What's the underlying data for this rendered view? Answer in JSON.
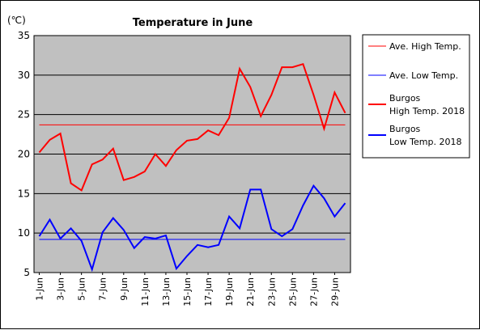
{
  "chart_data": {
    "type": "line",
    "title": "Temperature in June",
    "ylabel": "(℃)",
    "ylim": [
      5,
      35
    ],
    "yticks": [
      5,
      10,
      15,
      20,
      25,
      30,
      35
    ],
    "xticklabels": [
      "1-Jun",
      "3-Jun",
      "5-Jun",
      "7-Jun",
      "9-Jun",
      "11-Jun",
      "13-Jun",
      "15-Jun",
      "17-Jun",
      "19-Jun",
      "21-Jun",
      "23-Jun",
      "25-Jun",
      "27-Jun",
      "29-Jun"
    ],
    "days": [
      1,
      2,
      3,
      4,
      5,
      6,
      7,
      8,
      9,
      10,
      11,
      12,
      13,
      14,
      15,
      16,
      17,
      18,
      19,
      20,
      21,
      22,
      23,
      24,
      25,
      26,
      27,
      28,
      29,
      30
    ],
    "grid": true,
    "legend_position": "right",
    "series": [
      {
        "name": "Ave. High Temp.",
        "color": "#ff0000",
        "style": "thin",
        "constant": 23.7
      },
      {
        "name": "Ave. Low Temp.",
        "color": "#0000ff",
        "style": "thin",
        "constant": 9.2
      },
      {
        "name": "Burgos High Temp. 2018",
        "legend_lines": [
          "Burgos",
          "High Temp. 2018"
        ],
        "color": "#ff0000",
        "style": "thick",
        "values": [
          20.2,
          21.8,
          22.6,
          16.3,
          15.4,
          18.7,
          19.3,
          20.7,
          16.7,
          17.1,
          17.8,
          20.0,
          18.5,
          20.5,
          21.7,
          21.9,
          23.0,
          22.4,
          24.6,
          30.8,
          28.5,
          24.8,
          27.5,
          31.0,
          31.0,
          31.4,
          27.5,
          23.2,
          27.8,
          25.2
        ]
      },
      {
        "name": "Burgos Low Temp. 2018",
        "legend_lines": [
          "Burgos",
          "Low Temp. 2018"
        ],
        "color": "#0000ff",
        "style": "thick",
        "values": [
          9.6,
          11.7,
          9.3,
          10.6,
          9.0,
          5.4,
          10.1,
          11.9,
          10.4,
          8.1,
          9.5,
          9.3,
          9.7,
          5.5,
          7.1,
          8.5,
          8.2,
          8.5,
          12.1,
          10.6,
          15.5,
          15.5,
          10.5,
          9.6,
          10.5,
          13.5,
          16.0,
          14.4,
          12.1,
          13.8
        ]
      }
    ]
  }
}
